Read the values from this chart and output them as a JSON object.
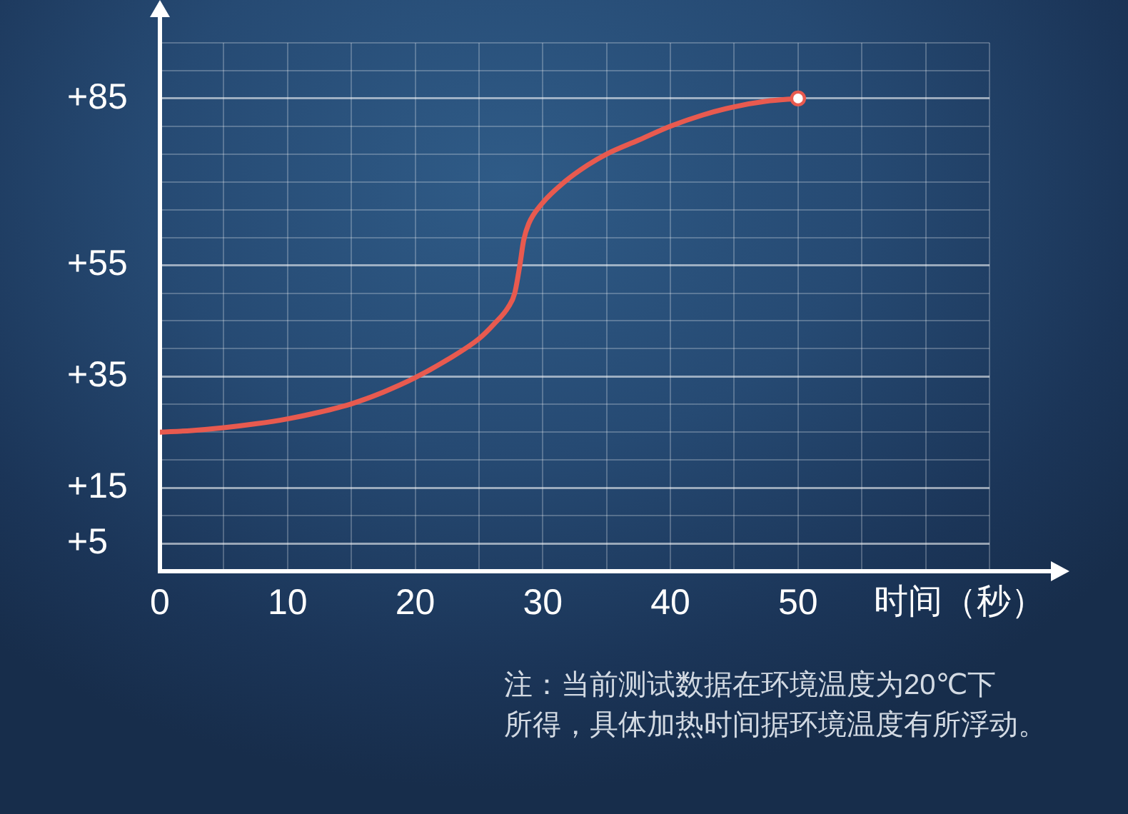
{
  "chart_data": {
    "type": "line",
    "x": [
      0,
      2.5,
      5,
      7.5,
      10,
      12.5,
      15,
      17.5,
      20,
      22.5,
      25,
      26.2,
      27.3,
      27.8,
      28.2,
      28.5,
      28.9,
      29.9,
      31.7,
      33.5,
      35,
      37.5,
      40,
      42.5,
      45,
      47.5,
      50
    ],
    "series": [
      {
        "values": [
          25,
          25.3,
          25.8,
          26.5,
          27.4,
          28.6,
          30.1,
          32.2,
          34.8,
          38,
          41.8,
          44.5,
          47.5,
          50,
          55,
          59.5,
          62.5,
          66,
          70,
          73,
          75,
          77.5,
          80,
          82,
          83.5,
          84.5,
          85
        ],
        "color": "#e85a4f"
      },
      {
        "type": "scatter",
        "x": [
          50
        ],
        "values": [
          85
        ],
        "color": "#ffffff"
      }
    ],
    "xlim": [
      0,
      65
    ],
    "ylim": [
      0,
      95
    ],
    "xticks": [
      0,
      {
        "value": 5,
        "label": null
      },
      10,
      {
        "value": 15,
        "label": null
      },
      20,
      {
        "value": 25,
        "label": null
      },
      30,
      {
        "value": 35,
        "label": null
      },
      40,
      {
        "value": 45,
        "label": null
      },
      50,
      {
        "value": 55,
        "label": null
      },
      {
        "value": 60,
        "label": null
      },
      {
        "value": 65,
        "label": null
      }
    ],
    "yticks": [
      {
        "value": 5,
        "label": "+5"
      },
      {
        "value": 10,
        "label": null
      },
      {
        "value": 15,
        "label": "+15"
      },
      {
        "value": 20,
        "label": null
      },
      {
        "value": 25,
        "label": null
      },
      {
        "value": 30,
        "label": null
      },
      {
        "value": 35,
        "label": "+35"
      },
      {
        "value": 40,
        "label": null
      },
      {
        "value": 45,
        "label": null
      },
      {
        "value": 50,
        "label": null
      },
      {
        "value": 55,
        "label": "+55"
      },
      {
        "value": 60,
        "label": null
      },
      {
        "value": 65,
        "label": null
      },
      {
        "value": 70,
        "label": null
      },
      {
        "value": 75,
        "label": null
      },
      {
        "value": 80,
        "label": null
      },
      {
        "value": 85,
        "label": "+85"
      },
      {
        "value": 90,
        "label": null
      },
      {
        "value": 95,
        "label": null
      }
    ],
    "grid": true,
    "xlabel": "时间（秒）",
    "annotations": [
      "注：当前测试数据在环境温度为20℃下所得，具体加热时间据环境温度有所浮动。"
    ]
  }
}
